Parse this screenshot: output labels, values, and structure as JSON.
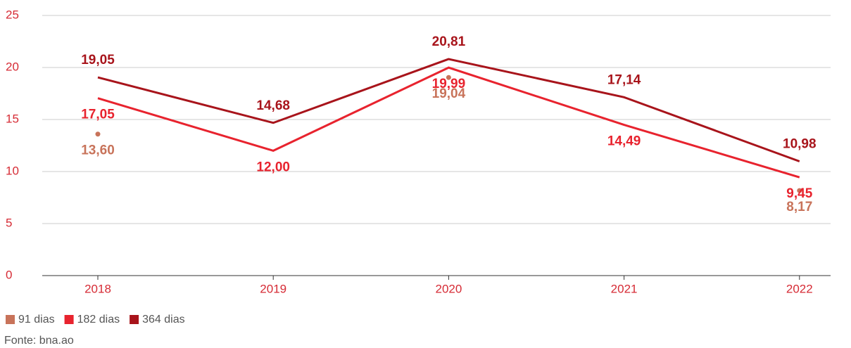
{
  "chart_data": {
    "type": "line",
    "categories": [
      "2018",
      "2019",
      "2020",
      "2021",
      "2022"
    ],
    "series": [
      {
        "name": "91 dias",
        "color": "#c8735a",
        "mode": "markers",
        "values": [
          13.6,
          null,
          19.04,
          null,
          8.17
        ],
        "value_labels": [
          "13,60",
          null,
          "19,04",
          null,
          "8,17"
        ]
      },
      {
        "name": "182 dias",
        "color": "#e8232e",
        "mode": "lines",
        "values": [
          17.05,
          12.0,
          19.99,
          14.49,
          9.45
        ],
        "value_labels": [
          "17,05",
          "12,00",
          "19,99",
          "14,49",
          "9,45"
        ]
      },
      {
        "name": "364 dias",
        "color": "#a8141b",
        "mode": "lines",
        "values": [
          19.05,
          14.68,
          20.81,
          17.14,
          10.98
        ],
        "value_labels": [
          "19,05",
          "14,68",
          "20,81",
          "17,14",
          "10,98"
        ]
      }
    ],
    "ylim": [
      0,
      25
    ],
    "yticks": [
      0,
      5,
      10,
      15,
      20,
      25
    ],
    "grid": true,
    "legend": "bottom-left",
    "source": "Fonte: bna.ao"
  }
}
